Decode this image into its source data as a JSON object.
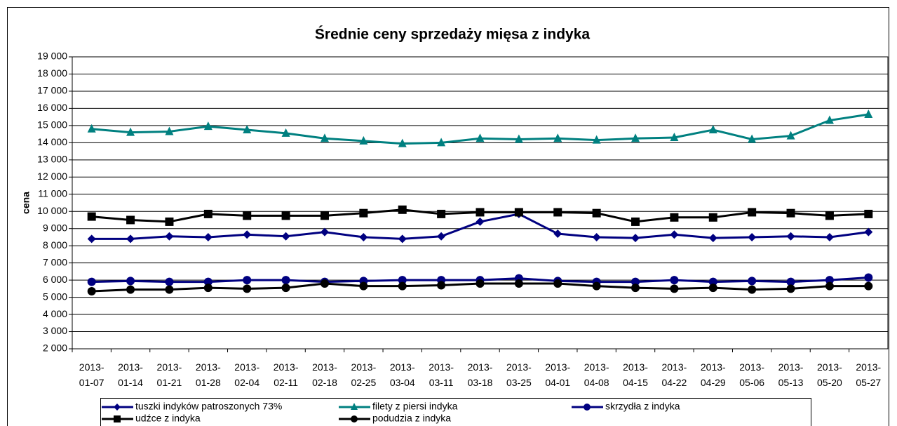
{
  "chart_data": {
    "type": "line",
    "title": "Średnie ceny sprzedaży mięsa z indyka",
    "ylabel": "cena",
    "categories": [
      "2013-01-07",
      "2013-01-14",
      "2013-01-21",
      "2013-01-28",
      "2013-02-04",
      "2013-02-11",
      "2013-02-18",
      "2013-02-25",
      "2013-03-04",
      "2013-03-11",
      "2013-03-18",
      "2013-03-25",
      "2013-04-01",
      "2013-04-08",
      "2013-04-15",
      "2013-04-22",
      "2013-04-29",
      "2013-05-06",
      "2013-05-13",
      "2013-05-20",
      "2013-05-27"
    ],
    "ylim": [
      2000,
      19000
    ],
    "yticks": [
      {
        "value": 2000,
        "label": "2 000"
      },
      {
        "value": 3000,
        "label": "3 000"
      },
      {
        "value": 4000,
        "label": "4 000"
      },
      {
        "value": 5000,
        "label": "5 000"
      },
      {
        "value": 6000,
        "label": "6 000"
      },
      {
        "value": 7000,
        "label": "7 000"
      },
      {
        "value": 8000,
        "label": "8 000"
      },
      {
        "value": 9000,
        "label": "9 000"
      },
      {
        "value": 10000,
        "label": "10 000"
      },
      {
        "value": 11000,
        "label": "11 000"
      },
      {
        "value": 12000,
        "label": "12 000"
      },
      {
        "value": 13000,
        "label": "13 000"
      },
      {
        "value": 14000,
        "label": "14 000"
      },
      {
        "value": 15000,
        "label": "15 000"
      },
      {
        "value": 16000,
        "label": "16 000"
      },
      {
        "value": 17000,
        "label": "17 000"
      },
      {
        "value": 18000,
        "label": "18 000"
      },
      {
        "value": 19000,
        "label": "19 000"
      }
    ],
    "grid": true,
    "series": [
      {
        "name": "tuszki indyków  patroszonych 73%",
        "color": "#000080",
        "marker": "diamond",
        "values": [
          8400,
          8400,
          8550,
          8500,
          8650,
          8550,
          8800,
          8500,
          8400,
          8550,
          9400,
          9850,
          8700,
          8500,
          8450,
          8650,
          8450,
          8500,
          8550,
          8500,
          8800
        ]
      },
      {
        "name": "filety z piersi indyka",
        "color": "#008080",
        "marker": "triangle",
        "values": [
          14800,
          14600,
          14650,
          14950,
          14750,
          14550,
          14250,
          14100,
          13950,
          14000,
          14250,
          14200,
          14250,
          14150,
          14250,
          14300,
          14750,
          14200,
          14400,
          15300,
          15650
        ]
      },
      {
        "name": "skrzydła z indyka",
        "color": "#000080",
        "marker": "circle",
        "values": [
          5900,
          5950,
          5900,
          5900,
          6000,
          6000,
          5900,
          5950,
          6000,
          6000,
          6000,
          6100,
          5950,
          5900,
          5900,
          6000,
          5900,
          5950,
          5900,
          6000,
          6150
        ]
      },
      {
        "name": "udźce z indyka",
        "color": "#000000",
        "marker": "square",
        "values": [
          9700,
          9500,
          9400,
          9850,
          9750,
          9750,
          9750,
          9900,
          10100,
          9850,
          9950,
          9950,
          9950,
          9900,
          9400,
          9650,
          9650,
          9950,
          9900,
          9750,
          9850
        ]
      },
      {
        "name": "podudzia z indyka",
        "color": "#000000",
        "marker": "circle",
        "values": [
          5350,
          5450,
          5450,
          5550,
          5500,
          5550,
          5800,
          5650,
          5650,
          5700,
          5800,
          5800,
          5800,
          5650,
          5550,
          5500,
          5550,
          5450,
          5500,
          5650,
          5650
        ]
      }
    ]
  }
}
